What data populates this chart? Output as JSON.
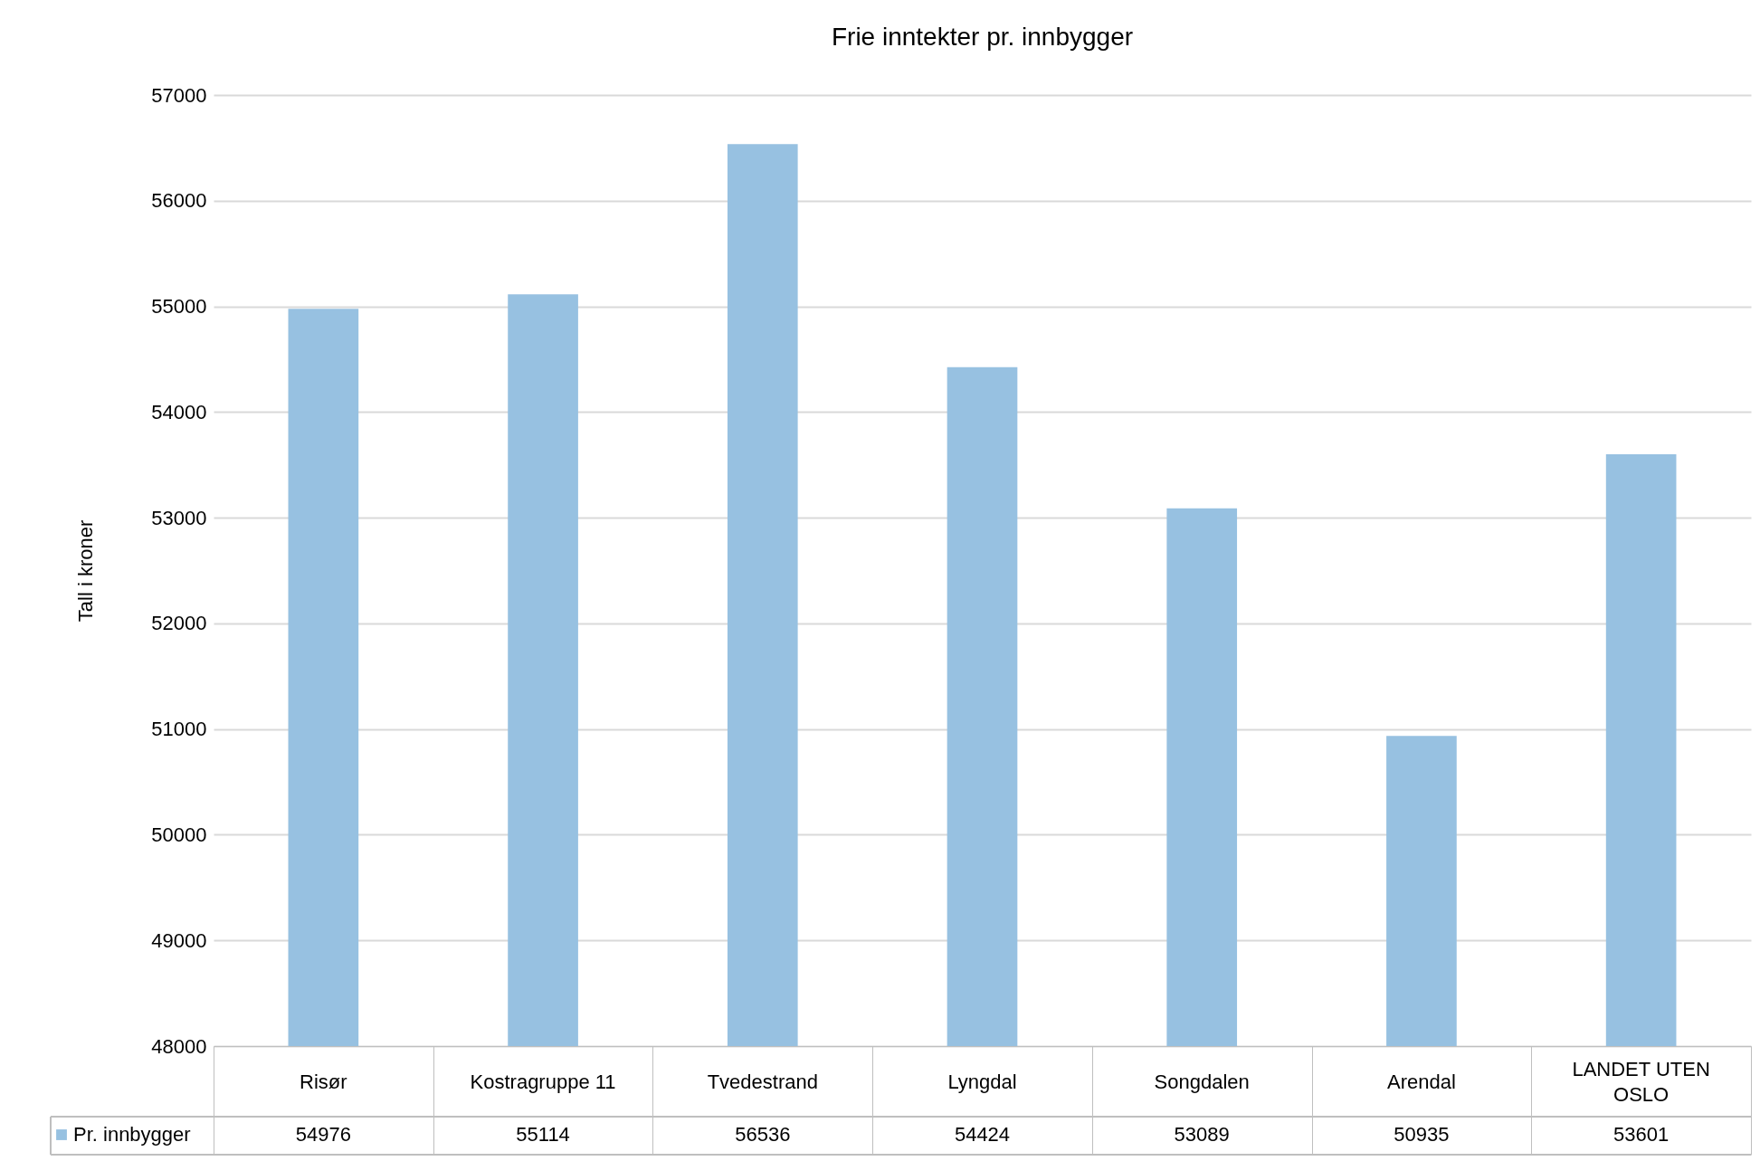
{
  "chart_data": {
    "type": "bar",
    "title": "Frie inntekter pr. innbygger",
    "ylabel": "Tall i kroner",
    "categories": [
      "Risør",
      "Kostragruppe 11",
      "Tvedestrand",
      "Lyngdal",
      "Songdalen",
      "Arendal",
      "LANDET UTEN OSLO"
    ],
    "series": [
      {
        "name": "Pr. innbygger",
        "color": "#97c1e1",
        "values": [
          54976,
          55114,
          56536,
          54424,
          53089,
          50935,
          53601
        ]
      }
    ],
    "ylim": [
      48000,
      57000
    ],
    "yticks": [
      48000,
      49000,
      50000,
      51000,
      52000,
      53000,
      54000,
      55000,
      56000,
      57000
    ],
    "grid": "y",
    "data_labels": true,
    "legend": "bottom left"
  }
}
